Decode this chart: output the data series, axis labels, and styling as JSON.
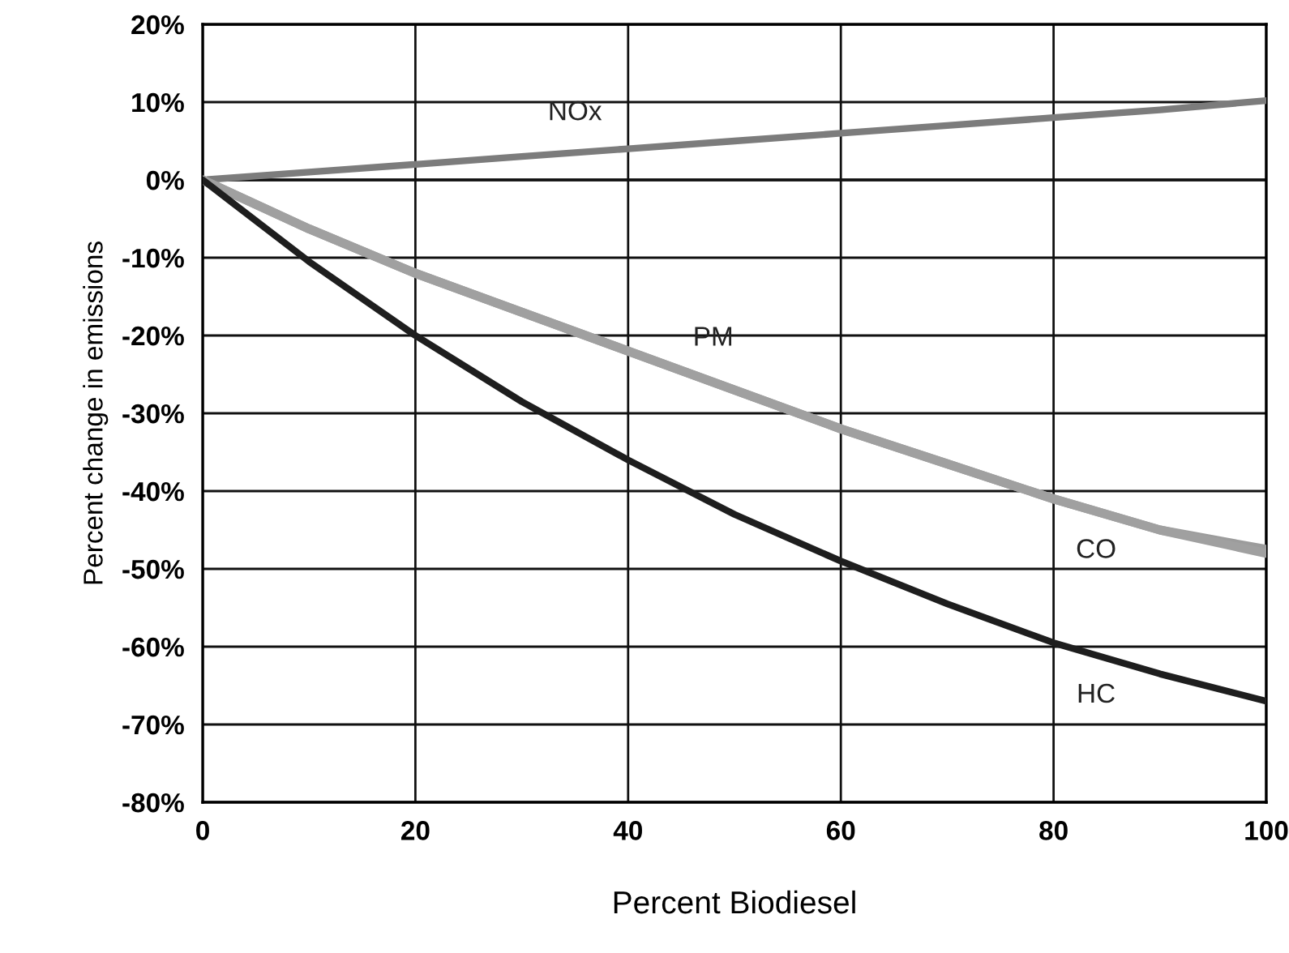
{
  "chart_data": {
    "type": "line",
    "xlabel": "Percent Biodiesel",
    "ylabel": "Percent change in emissions",
    "x": [
      0,
      10,
      20,
      30,
      40,
      50,
      60,
      70,
      80,
      90,
      100
    ],
    "series": [
      {
        "color": "#7c7c7c",
        "values": [
          0,
          1,
          2,
          3,
          4,
          5,
          6,
          7,
          8,
          9,
          10.2
        ]
      },
      {
        "color": "#9c9c9c",
        "values": [
          0,
          -6.3,
          -12,
          -17,
          -22,
          -27,
          -32,
          -36.5,
          -41,
          -45,
          -47.5
        ]
      },
      {
        "color": "#a0a0a0",
        "values": [
          0,
          -6.3,
          -12,
          -17,
          -22,
          -27,
          -32,
          -36.5,
          -41,
          -45,
          -48
        ]
      },
      {
        "color": "#1e1e1e",
        "values": [
          0,
          -10.5,
          -20,
          -28.5,
          -36,
          -43,
          -49,
          -54.5,
          -59.5,
          -63.5,
          -67
        ]
      }
    ],
    "annotations": [
      {
        "text": "NOx",
        "x": 35,
        "y": 3.5
      },
      {
        "text": "PM",
        "x": 48,
        "y": -25.5
      },
      {
        "text": "CO",
        "x": 84,
        "y": -42.6
      },
      {
        "text": "HC",
        "x": 84,
        "y": -61.2
      }
    ],
    "xlim": [
      0,
      100
    ],
    "xticks": [
      0,
      20,
      40,
      60,
      80,
      100
    ],
    "ylim": [
      -80,
      20
    ],
    "yticks": [
      {
        "value": -80,
        "label": "-80%"
      },
      {
        "value": -70,
        "label": "-70%"
      },
      {
        "value": -60,
        "label": "-60%"
      },
      {
        "value": -50,
        "label": "-50%"
      },
      {
        "value": -40,
        "label": "-40%"
      },
      {
        "value": -30,
        "label": "-30%"
      },
      {
        "value": -20,
        "label": "-20%"
      },
      {
        "value": -10,
        "label": "-10%"
      },
      {
        "value": 0,
        "label": "0%"
      },
      {
        "value": 10,
        "label": "10%"
      },
      {
        "value": 20,
        "label": "20%"
      }
    ],
    "grid": true,
    "marker": "none",
    "line_style": "solid"
  }
}
